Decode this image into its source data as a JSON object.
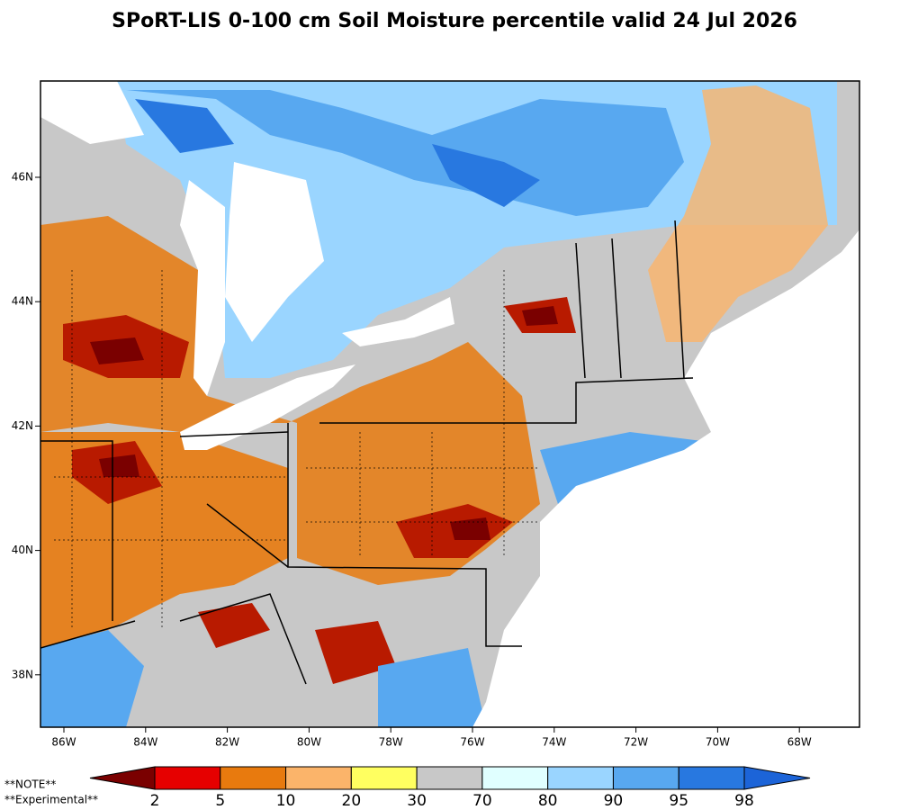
{
  "title": "SPoRT-LIS 0-100 cm Soil Moisture percentile valid 24 Jul 2026",
  "map": {
    "lon_labels": [
      "86W",
      "84W",
      "82W",
      "80W",
      "78W",
      "76W",
      "74W",
      "72W",
      "70W",
      "68W"
    ],
    "lat_labels": [
      "46N",
      "44N",
      "42N",
      "40N",
      "38N"
    ]
  },
  "colorbar": {
    "bounds": [
      2,
      5,
      10,
      20,
      30,
      70,
      80,
      90,
      95,
      98
    ],
    "colors": [
      "#7a0000",
      "#e60000",
      "#e87a0e",
      "#fbb46a",
      "#ffff60",
      "#c8c8c8",
      "#e0ffff",
      "#9ad5ff",
      "#58a8f0",
      "#2878e0",
      "#1c64d8"
    ]
  },
  "notes": [
    "**NOTE**",
    "**Experimental**"
  ]
}
